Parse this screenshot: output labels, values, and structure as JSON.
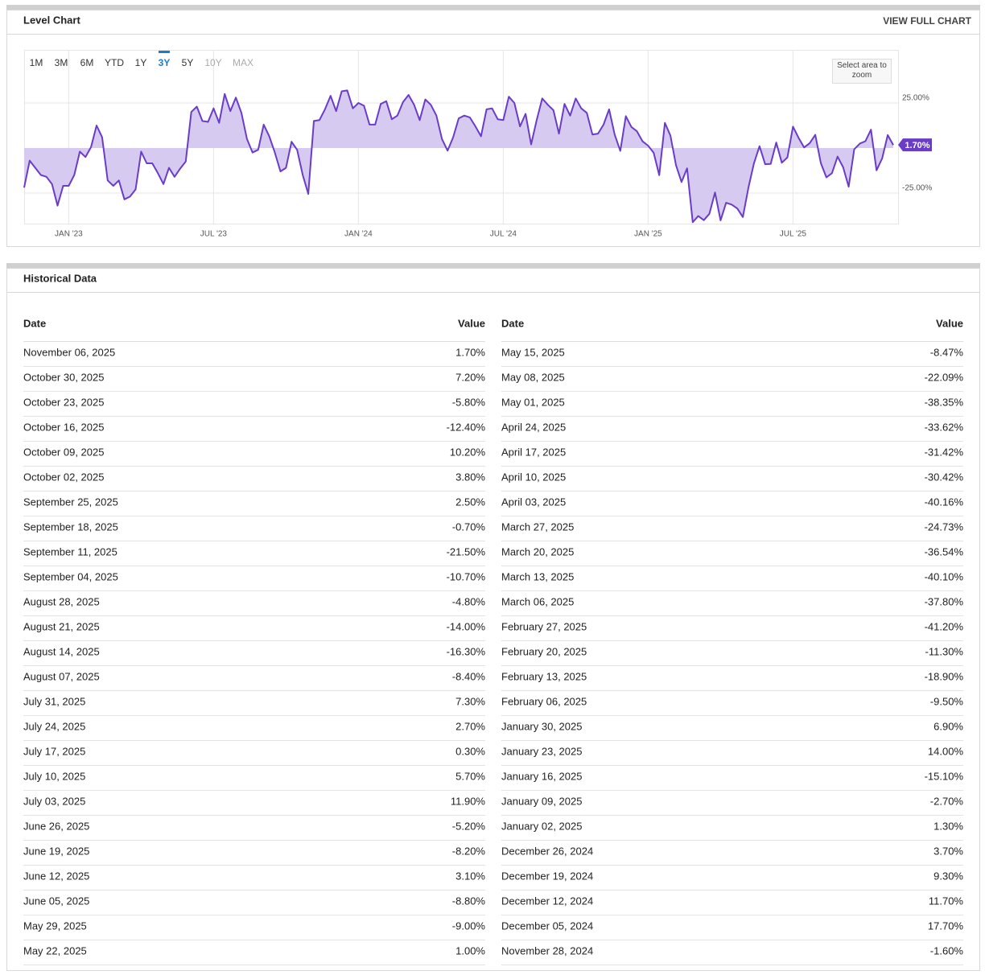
{
  "header": {
    "title": "Level Chart",
    "link": "VIEW FULL CHART"
  },
  "ranges": {
    "buttons": [
      "1M",
      "3M",
      "6M",
      "YTD",
      "1Y",
      "3Y",
      "5Y",
      "10Y",
      "MAX"
    ],
    "selected": "3Y",
    "disabled": [
      "10Y",
      "MAX"
    ]
  },
  "zoom_hint": "Select area to zoom",
  "chart_data": {
    "type": "line",
    "categories": [
      null,
      null,
      null,
      null,
      null,
      null,
      null,
      null,
      "JAN '23",
      null,
      null,
      null,
      null,
      null,
      null,
      null,
      null,
      null,
      null,
      null,
      null,
      null,
      null,
      null,
      null,
      null,
      null,
      null,
      null,
      null,
      null,
      null,
      null,
      null,
      "JUL '23",
      null,
      null,
      null,
      null,
      null,
      null,
      null,
      null,
      null,
      null,
      null,
      null,
      null,
      null,
      null,
      null,
      null,
      null,
      null,
      null,
      null,
      null,
      null,
      null,
      null,
      "JAN '24",
      null,
      null,
      null,
      null,
      null,
      null,
      null,
      null,
      null,
      null,
      null,
      null,
      null,
      null,
      null,
      null,
      null,
      null,
      null,
      null,
      null,
      null,
      null,
      null,
      null,
      "JUL '24",
      null,
      null,
      null,
      null,
      null,
      null,
      null,
      null,
      null,
      null,
      null,
      null,
      null,
      null,
      null,
      null,
      null,
      null,
      null,
      null,
      null,
      null,
      null,
      null,
      null,
      "JAN '25",
      null,
      null,
      null,
      null,
      null,
      null,
      null,
      null,
      null,
      null,
      null,
      null,
      null,
      null,
      null,
      null,
      null,
      null,
      null,
      null,
      null,
      null,
      null,
      null,
      null,
      "JUL '25",
      null,
      null,
      null,
      null,
      null,
      null,
      null,
      null,
      null,
      null,
      null,
      null,
      null,
      null,
      null,
      null,
      null,
      null
    ],
    "series": [
      {
        "name": "Level",
        "color": "#6a3cc7",
        "fill": "#d6caf0",
        "values": [
          -22,
          -7,
          -11,
          -15,
          -16,
          -20,
          -32,
          -21,
          -21,
          -15,
          -2,
          -5,
          0.5,
          12.5,
          6,
          -18,
          -21,
          -18,
          -28.5,
          -27,
          -23,
          -2,
          -8.5,
          -8.5,
          -14,
          -20,
          -11,
          -16,
          -11.5,
          -7.5,
          20,
          23,
          15,
          14.5,
          22,
          14,
          30,
          20.5,
          28,
          19.5,
          5,
          -2.5,
          -1,
          13,
          6.5,
          -2.5,
          -13,
          -11,
          3.5,
          -1,
          -15,
          -25.5,
          15,
          15.5,
          21.5,
          29,
          20.5,
          31.5,
          32,
          22,
          25,
          23.5,
          13,
          13,
          24.5,
          26,
          16,
          18,
          25.5,
          29.5,
          24,
          15.5,
          27,
          24,
          18,
          5,
          -1.5,
          6,
          16.5,
          18,
          17,
          12,
          6.5,
          21.5,
          22,
          16,
          15.5,
          28.5,
          25,
          12,
          19,
          2,
          15.5,
          27.5,
          24,
          21,
          8,
          24.5,
          18,
          27.5,
          22,
          19.5,
          7.5,
          8,
          13,
          21.5,
          7.5,
          -1.6,
          17.7,
          11.7,
          9.3,
          3.7,
          1.3,
          -2.7,
          -15.1,
          14.0,
          6.9,
          -9.5,
          -18.9,
          -11.3,
          -41.2,
          -37.8,
          -40.1,
          -36.54,
          -24.73,
          -40.16,
          -30.42,
          -31.42,
          -33.62,
          -38.35,
          -22.09,
          -8.47,
          1.0,
          -9.0,
          -8.8,
          3.1,
          -8.2,
          -5.2,
          11.9,
          5.7,
          0.3,
          2.7,
          7.3,
          -8.4,
          -16.3,
          -14.0,
          -4.8,
          -10.7,
          -21.5,
          -0.7,
          2.5,
          3.8,
          10.2,
          -12.4,
          -5.8,
          7.2,
          1.7
        ]
      }
    ],
    "last_value_label": "1.70%",
    "ylim": [
      -42,
      54.5
    ],
    "yticks": [
      {
        "value": 25,
        "label": "25.00%"
      },
      {
        "value": -25,
        "label": "-25.00%"
      }
    ],
    "grid": true
  },
  "historical": {
    "title": "Historical Data",
    "columns": [
      {
        "headers": [
          "Date",
          "Value"
        ],
        "rows": [
          [
            "November 06, 2025",
            "1.70%"
          ],
          [
            "October 30, 2025",
            "7.20%"
          ],
          [
            "October 23, 2025",
            "-5.80%"
          ],
          [
            "October 16, 2025",
            "-12.40%"
          ],
          [
            "October 09, 2025",
            "10.20%"
          ],
          [
            "October 02, 2025",
            "3.80%"
          ],
          [
            "September 25, 2025",
            "2.50%"
          ],
          [
            "September 18, 2025",
            "-0.70%"
          ],
          [
            "September 11, 2025",
            "-21.50%"
          ],
          [
            "September 04, 2025",
            "-10.70%"
          ],
          [
            "August 28, 2025",
            "-4.80%"
          ],
          [
            "August 21, 2025",
            "-14.00%"
          ],
          [
            "August 14, 2025",
            "-16.30%"
          ],
          [
            "August 07, 2025",
            "-8.40%"
          ],
          [
            "July 31, 2025",
            "7.30%"
          ],
          [
            "July 24, 2025",
            "2.70%"
          ],
          [
            "July 17, 2025",
            "0.30%"
          ],
          [
            "July 10, 2025",
            "5.70%"
          ],
          [
            "July 03, 2025",
            "11.90%"
          ],
          [
            "June 26, 2025",
            "-5.20%"
          ],
          [
            "June 19, 2025",
            "-8.20%"
          ],
          [
            "June 12, 2025",
            "3.10%"
          ],
          [
            "June 05, 2025",
            "-8.80%"
          ],
          [
            "May 29, 2025",
            "-9.00%"
          ],
          [
            "May 22, 2025",
            "1.00%"
          ]
        ]
      },
      {
        "headers": [
          "Date",
          "Value"
        ],
        "rows": [
          [
            "May 15, 2025",
            "-8.47%"
          ],
          [
            "May 08, 2025",
            "-22.09%"
          ],
          [
            "May 01, 2025",
            "-38.35%"
          ],
          [
            "April 24, 2025",
            "-33.62%"
          ],
          [
            "April 17, 2025",
            "-31.42%"
          ],
          [
            "April 10, 2025",
            "-30.42%"
          ],
          [
            "April 03, 2025",
            "-40.16%"
          ],
          [
            "March 27, 2025",
            "-24.73%"
          ],
          [
            "March 20, 2025",
            "-36.54%"
          ],
          [
            "March 13, 2025",
            "-40.10%"
          ],
          [
            "March 06, 2025",
            "-37.80%"
          ],
          [
            "February 27, 2025",
            "-41.20%"
          ],
          [
            "February 20, 2025",
            "-11.30%"
          ],
          [
            "February 13, 2025",
            "-18.90%"
          ],
          [
            "February 06, 2025",
            "-9.50%"
          ],
          [
            "January 30, 2025",
            "6.90%"
          ],
          [
            "January 23, 2025",
            "14.00%"
          ],
          [
            "January 16, 2025",
            "-15.10%"
          ],
          [
            "January 09, 2025",
            "-2.70%"
          ],
          [
            "January 02, 2025",
            "1.30%"
          ],
          [
            "December 26, 2024",
            "3.70%"
          ],
          [
            "December 19, 2024",
            "9.30%"
          ],
          [
            "December 12, 2024",
            "11.70%"
          ],
          [
            "December 05, 2024",
            "17.70%"
          ],
          [
            "November 28, 2024",
            "-1.60%"
          ]
        ]
      }
    ]
  }
}
